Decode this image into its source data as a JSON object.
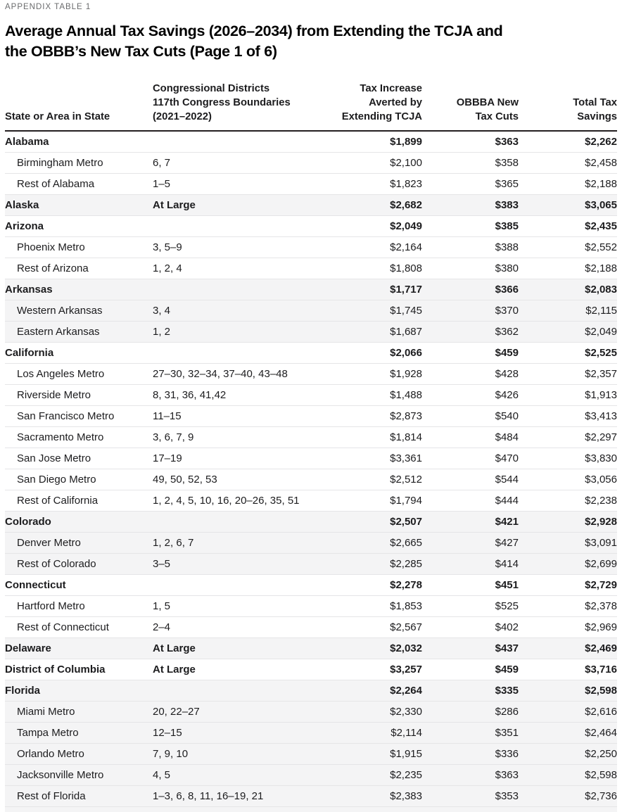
{
  "eyebrow": "APPENDIX TABLE 1",
  "title": "Average Annual Tax Savings (2026–2034) from Extending the TCJA and\nthe OBBB’s New Tax Cuts (Page 1 of 6)",
  "colors": {
    "header_rule": "#231f20",
    "row_rule": "#e5e5e7",
    "shaded_group_background": "#f4f4f5",
    "eyebrow_text": "#6a6b6d"
  },
  "table": {
    "headers": {
      "state": "State or Area in State",
      "districts": [
        "Congressional Districts",
        "117th Congress Boundaries",
        "(2021–2022)"
      ],
      "tcja": [
        "Tax Increase",
        "Averted by",
        "Extending TCJA"
      ],
      "obbba": [
        "OBBBA New",
        "Tax Cuts"
      ],
      "total": [
        "Total Tax",
        "Savings"
      ]
    },
    "groups": [
      {
        "state": {
          "name": "Alabama",
          "districts": "",
          "tcja": "$1,899",
          "obbba": "$363",
          "total": "$2,262"
        },
        "areas": [
          {
            "name": "Birmingham Metro",
            "districts": "6, 7",
            "tcja": "$2,100",
            "obbba": "$358",
            "total": "$2,458"
          },
          {
            "name": "Rest of Alabama",
            "districts": "1–5",
            "tcja": "$1,823",
            "obbba": "$365",
            "total": "$2,188"
          }
        ]
      },
      {
        "state": {
          "name": "Alaska",
          "districts": "At Large",
          "tcja": "$2,682",
          "obbba": "$383",
          "total": "$3,065"
        },
        "areas": []
      },
      {
        "state": {
          "name": "Arizona",
          "districts": "",
          "tcja": "$2,049",
          "obbba": "$385",
          "total": "$2,435"
        },
        "areas": [
          {
            "name": "Phoenix Metro",
            "districts": "3, 5–9",
            "tcja": "$2,164",
            "obbba": "$388",
            "total": "$2,552"
          },
          {
            "name": "Rest of Arizona",
            "districts": "1, 2, 4",
            "tcja": "$1,808",
            "obbba": "$380",
            "total": "$2,188"
          }
        ]
      },
      {
        "state": {
          "name": "Arkansas",
          "districts": "",
          "tcja": "$1,717",
          "obbba": "$366",
          "total": "$2,083"
        },
        "areas": [
          {
            "name": "Western Arkansas",
            "districts": "3, 4",
            "tcja": "$1,745",
            "obbba": "$370",
            "total": "$2,115"
          },
          {
            "name": "Eastern Arkansas",
            "districts": "1, 2",
            "tcja": "$1,687",
            "obbba": "$362",
            "total": "$2,049"
          }
        ]
      },
      {
        "state": {
          "name": "California",
          "districts": "",
          "tcja": "$2,066",
          "obbba": "$459",
          "total": "$2,525"
        },
        "areas": [
          {
            "name": "Los Angeles Metro",
            "districts": "27–30, 32–34, 37–40, 43–48",
            "tcja": "$1,928",
            "obbba": "$428",
            "total": "$2,357"
          },
          {
            "name": "Riverside Metro",
            "districts": "8, 31, 36, 41,42",
            "tcja": "$1,488",
            "obbba": "$426",
            "total": "$1,913"
          },
          {
            "name": "San Francisco Metro",
            "districts": "11–15",
            "tcja": "$2,873",
            "obbba": "$540",
            "total": "$3,413"
          },
          {
            "name": "Sacramento Metro",
            "districts": "3, 6, 7, 9",
            "tcja": "$1,814",
            "obbba": "$484",
            "total": "$2,297"
          },
          {
            "name": "San Jose Metro",
            "districts": "17–19",
            "tcja": "$3,361",
            "obbba": "$470",
            "total": "$3,830"
          },
          {
            "name": "San Diego Metro",
            "districts": "49, 50, 52, 53",
            "tcja": "$2,512",
            "obbba": "$544",
            "total": "$3,056"
          },
          {
            "name": "Rest of California",
            "districts": "1, 2, 4, 5, 10, 16, 20–26, 35, 51",
            "tcja": "$1,794",
            "obbba": "$444",
            "total": "$2,238"
          }
        ]
      },
      {
        "state": {
          "name": "Colorado",
          "districts": "",
          "tcja": "$2,507",
          "obbba": "$421",
          "total": "$2,928"
        },
        "areas": [
          {
            "name": "Denver Metro",
            "districts": "1, 2, 6, 7",
            "tcja": "$2,665",
            "obbba": "$427",
            "total": "$3,091"
          },
          {
            "name": "Rest of Colorado",
            "districts": "3–5",
            "tcja": "$2,285",
            "obbba": "$414",
            "total": "$2,699"
          }
        ]
      },
      {
        "state": {
          "name": "Connecticut",
          "districts": "",
          "tcja": "$2,278",
          "obbba": "$451",
          "total": "$2,729"
        },
        "areas": [
          {
            "name": "Hartford Metro",
            "districts": "1, 5",
            "tcja": "$1,853",
            "obbba": "$525",
            "total": "$2,378"
          },
          {
            "name": "Rest of Connecticut",
            "districts": "2–4",
            "tcja": "$2,567",
            "obbba": "$402",
            "total": "$2,969"
          }
        ]
      },
      {
        "state": {
          "name": "Delaware",
          "districts": "At Large",
          "tcja": "$2,032",
          "obbba": "$437",
          "total": "$2,469"
        },
        "areas": []
      },
      {
        "state": {
          "name": "District of Columbia",
          "districts": "At Large",
          "tcja": "$3,257",
          "obbba": "$459",
          "total": "$3,716"
        },
        "areas": []
      },
      {
        "state": {
          "name": "Florida",
          "districts": "",
          "tcja": "$2,264",
          "obbba": "$335",
          "total": "$2,598"
        },
        "areas": [
          {
            "name": "Miami Metro",
            "districts": "20, 22–27",
            "tcja": "$2,330",
            "obbba": "$286",
            "total": "$2,616"
          },
          {
            "name": "Tampa Metro",
            "districts": "12–15",
            "tcja": "$2,114",
            "obbba": "$351",
            "total": "$2,464"
          },
          {
            "name": "Orlando Metro",
            "districts": "7, 9, 10",
            "tcja": "$1,915",
            "obbba": "$336",
            "total": "$2,250"
          },
          {
            "name": "Jacksonville Metro",
            "districts": "4, 5",
            "tcja": "$2,235",
            "obbba": "$363",
            "total": "$2,598"
          },
          {
            "name": "Rest of Florida",
            "districts": "1–3, 6, 8, 11, 16–19, 21",
            "tcja": "$2,383",
            "obbba": "$353",
            "total": "$2,736"
          }
        ]
      }
    ]
  }
}
